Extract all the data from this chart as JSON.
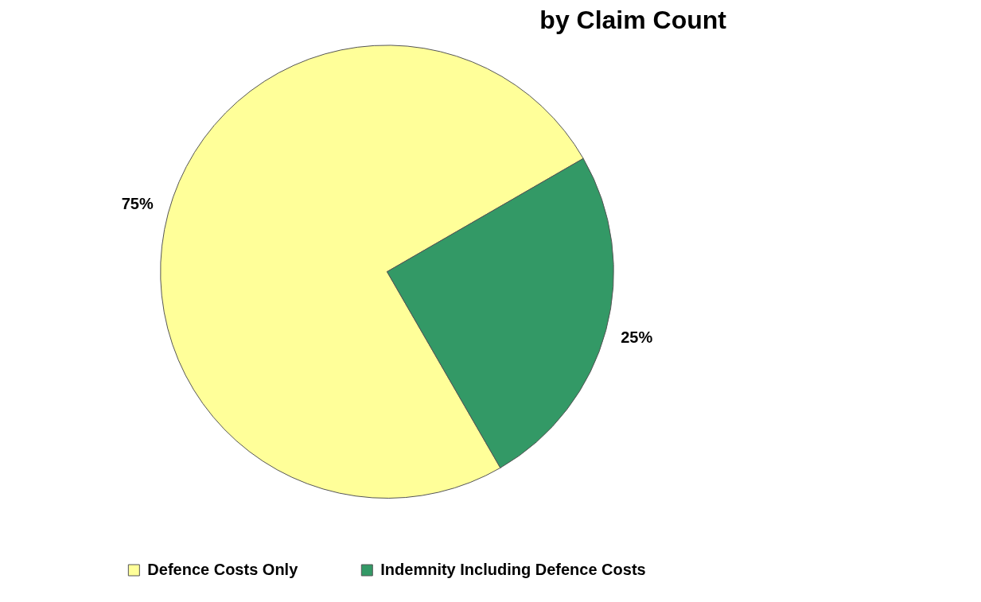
{
  "chart_data": {
    "type": "pie",
    "title": "by Claim Count",
    "categories": [
      "Defence Costs Only",
      "Indemnity Including Defence Costs"
    ],
    "values": [
      75,
      25
    ],
    "colors": [
      "#ffff99",
      "#339966"
    ],
    "value_labels": [
      "75%",
      "25%"
    ],
    "legend": "bottom"
  }
}
